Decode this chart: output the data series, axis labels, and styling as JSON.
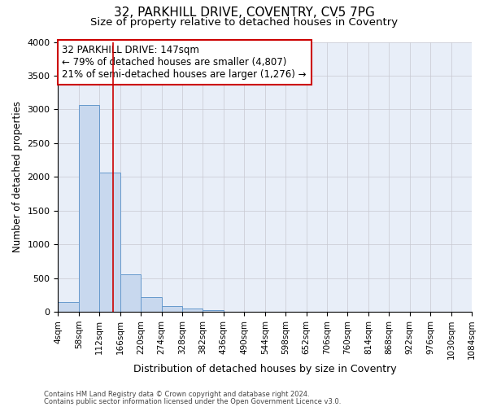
{
  "title1": "32, PARKHILL DRIVE, COVENTRY, CV5 7PG",
  "title2": "Size of property relative to detached houses in Coventry",
  "xlabel": "Distribution of detached houses by size in Coventry",
  "ylabel": "Number of detached properties",
  "bin_edges": [
    4,
    58,
    112,
    166,
    220,
    274,
    328,
    382,
    436,
    490,
    544,
    598,
    652,
    706,
    760,
    814,
    868,
    922,
    976,
    1030,
    1084
  ],
  "bar_heights": [
    150,
    3060,
    2060,
    560,
    220,
    80,
    50,
    30,
    0,
    0,
    0,
    0,
    0,
    0,
    0,
    0,
    0,
    0,
    0,
    0
  ],
  "bar_color": "#c8d8ee",
  "bar_edge_color": "#6699cc",
  "vline_x": 147,
  "vline_color": "#cc0000",
  "annotation_line1": "32 PARKHILL DRIVE: 147sqm",
  "annotation_line2": "← 79% of detached houses are smaller (4,807)",
  "annotation_line3": "21% of semi-detached houses are larger (1,276) →",
  "annotation_box_color": "#cc0000",
  "ylim": [
    0,
    4000
  ],
  "yticks": [
    0,
    500,
    1000,
    1500,
    2000,
    2500,
    3000,
    3500,
    4000
  ],
  "footer1": "Contains HM Land Registry data © Crown copyright and database right 2024.",
  "footer2": "Contains public sector information licensed under the Open Government Licence v3.0.",
  "bg_color": "#e8eef8",
  "grid_color": "#c8c8d0",
  "title1_fontsize": 11,
  "title2_fontsize": 9.5,
  "ann_fontsize": 8.5,
  "ylabel_fontsize": 8.5,
  "xlabel_fontsize": 9,
  "tick_fontsize": 7.5,
  "ytick_fontsize": 8
}
